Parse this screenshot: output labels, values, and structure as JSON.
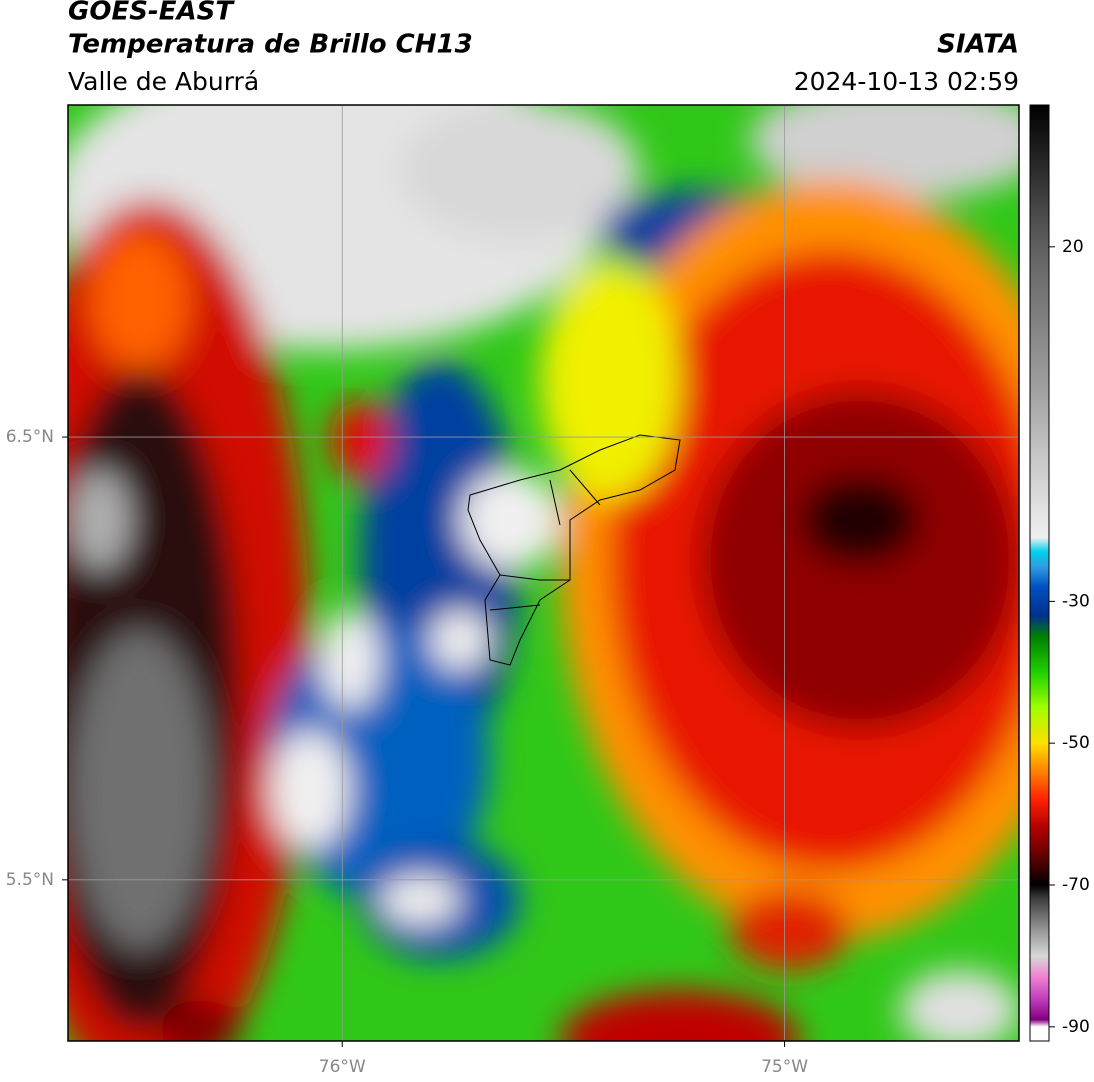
{
  "chart_data": {
    "type": "map",
    "title": "GOES-EAST",
    "subtitle": "Temperatura de Brillo CH13",
    "region": "Valle de Aburrá",
    "source": "SIATA",
    "timestamp": "2024-10-13 02:59",
    "xlim": [
      -76.62,
      -74.47
    ],
    "ylim": [
      5.136,
      7.25
    ],
    "xticks": [
      {
        "value": -76,
        "label": "76°W"
      },
      {
        "value": -75,
        "label": "75°W"
      }
    ],
    "yticks": [
      {
        "value": 6.5,
        "label": "6.5°N"
      },
      {
        "value": 5.5,
        "label": "5.5°N"
      }
    ],
    "grid": true,
    "colorbar_ticks": [
      20,
      -30,
      -50,
      -70,
      -90
    ],
    "colormap": [
      {
        "value": -92,
        "color": "#ffffff"
      },
      {
        "value": -90,
        "color": "#ffffff"
      },
      {
        "value": -89,
        "color": "#800080"
      },
      {
        "value": -86,
        "color": "#c040c0"
      },
      {
        "value": -83,
        "color": "#f080d0"
      },
      {
        "value": -80,
        "color": "#d8d8d8"
      },
      {
        "value": -76,
        "color": "#909090"
      },
      {
        "value": -72,
        "color": "#404040"
      },
      {
        "value": -70,
        "color": "#000000"
      },
      {
        "value": -66,
        "color": "#600000"
      },
      {
        "value": -62,
        "color": "#b00000"
      },
      {
        "value": -58,
        "color": "#ff2000"
      },
      {
        "value": -54,
        "color": "#ff8000"
      },
      {
        "value": -50,
        "color": "#ffe000"
      },
      {
        "value": -45,
        "color": "#a0ff00"
      },
      {
        "value": -40,
        "color": "#20d000"
      },
      {
        "value": -35,
        "color": "#008000"
      },
      {
        "value": -32,
        "color": "#003090"
      },
      {
        "value": -28,
        "color": "#0050c0"
      },
      {
        "value": -25,
        "color": "#30a0e0"
      },
      {
        "value": -23,
        "color": "#00d0f0"
      },
      {
        "value": -21,
        "color": "#f0f0f0"
      },
      {
        "value": -10,
        "color": "#c8c8c8"
      },
      {
        "value": 0,
        "color": "#a0a0a0"
      },
      {
        "value": 10,
        "color": "#808080"
      },
      {
        "value": 20,
        "color": "#606060"
      },
      {
        "value": 30,
        "color": "#303030"
      },
      {
        "value": 40,
        "color": "#000000"
      }
    ]
  }
}
